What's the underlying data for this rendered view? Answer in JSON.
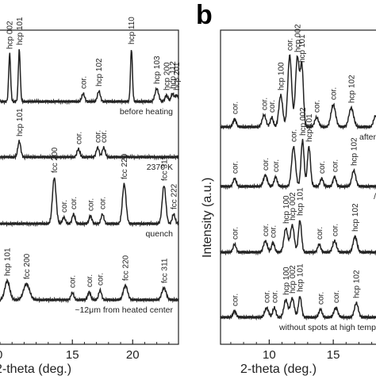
{
  "chart_data": [
    {
      "panel": "a",
      "type": "line",
      "xlabel": "2-theta (deg.)",
      "ylabel": "",
      "xlim": [
        9.0,
        23.8
      ],
      "xticks": [
        15,
        20
      ],
      "xtick_labels": [
        "15",
        "20"
      ],
      "partial_tick_label": "0",
      "traces": [
        {
          "label": "before heating",
          "peaks": [
            {
              "x": 9.8,
              "h": 60,
              "w": 0.08,
              "label": "hcp 002"
            },
            {
              "x": 10.6,
              "h": 65,
              "w": 0.08,
              "label": "hcp 101"
            },
            {
              "x": 15.9,
              "h": 10,
              "w": 0.12,
              "label": "cor."
            },
            {
              "x": 17.2,
              "h": 13,
              "w": 0.12,
              "label": "hcp 102"
            },
            {
              "x": 19.9,
              "h": 66,
              "w": 0.08,
              "label": "hcp 110"
            },
            {
              "x": 22.0,
              "h": 16,
              "w": 0.15,
              "label": "hcp 103"
            },
            {
              "x": 22.8,
              "h": 8,
              "w": 0.12,
              "label": "hcp 200"
            },
            {
              "x": 23.3,
              "h": 10,
              "w": 0.12,
              "label": "hcp 112"
            },
            {
              "x": 23.65,
              "h": 8,
              "w": 0.12,
              "label": "hcp 201"
            }
          ]
        },
        {
          "label": "2370 K",
          "peaks": [
            {
              "x": 10.6,
              "h": 20,
              "w": 0.12,
              "label": "hcp 101"
            },
            {
              "x": 15.5,
              "h": 10,
              "w": 0.12,
              "label": "cor."
            },
            {
              "x": 17.1,
              "h": 12,
              "w": 0.12,
              "label": "cor."
            },
            {
              "x": 17.6,
              "h": 12,
              "w": 0.12,
              "label": "cor."
            }
          ]
        },
        {
          "label": "quench",
          "peaks": [
            {
              "x": 13.5,
              "h": 58,
              "w": 0.15,
              "label": "fcc 200"
            },
            {
              "x": 14.3,
              "h": 8,
              "w": 0.12,
              "label": "cor."
            },
            {
              "x": 15.1,
              "h": 12,
              "w": 0.12,
              "label": "cor."
            },
            {
              "x": 16.5,
              "h": 10,
              "w": 0.12,
              "label": "cor."
            },
            {
              "x": 17.5,
              "h": 12,
              "w": 0.12,
              "label": "cor."
            },
            {
              "x": 19.3,
              "h": 50,
              "w": 0.15,
              "label": "fcc 220"
            },
            {
              "x": 22.6,
              "h": 48,
              "w": 0.15,
              "label": "fcc 311"
            },
            {
              "x": 23.4,
              "h": 12,
              "w": 0.12,
              "label": "fcc 222"
            }
          ]
        },
        {
          "label": "~12μm from heated center",
          "peaks": [
            {
              "x": 9.6,
              "h": 24,
              "w": 0.2,
              "label": "hcp 101"
            },
            {
              "x": 11.2,
              "h": 20,
              "w": 0.25,
              "label": "fcc 200"
            },
            {
              "x": 15.0,
              "h": 9,
              "w": 0.12,
              "label": "cor."
            },
            {
              "x": 16.4,
              "h": 10,
              "w": 0.12,
              "label": "cor."
            },
            {
              "x": 17.3,
              "h": 12,
              "w": 0.12,
              "label": "cor."
            },
            {
              "x": 19.4,
              "h": 18,
              "w": 0.18,
              "label": "fcc 220"
            },
            {
              "x": 22.6,
              "h": 15,
              "w": 0.18,
              "label": "fcc 311"
            }
          ]
        }
      ]
    },
    {
      "panel": "b",
      "type": "line",
      "xlabel": "2-theta (deg.)",
      "ylabel": "Intensity (a.u.)",
      "xlim": [
        6.2,
        19.2
      ],
      "xticks": [
        10,
        15
      ],
      "xtick_labels": [
        "10",
        "15"
      ],
      "traces": [
        {
          "label": "after",
          "peaks": [
            {
              "x": 7.3,
              "h": 10,
              "w": 0.12,
              "label": "cor."
            },
            {
              "x": 9.6,
              "h": 15,
              "w": 0.15,
              "label": "cor."
            },
            {
              "x": 10.2,
              "h": 12,
              "w": 0.12,
              "label": "cor."
            },
            {
              "x": 10.9,
              "h": 40,
              "w": 0.15,
              "label": "hcp 100"
            },
            {
              "x": 11.6,
              "h": 90,
              "w": 0.15,
              "label": "cor."
            },
            {
              "x": 12.2,
              "h": 88,
              "w": 0.15,
              "label": "hcp 002"
            },
            {
              "x": 12.55,
              "h": 75,
              "w": 0.12,
              "label": "hcp 101"
            },
            {
              "x": 13.7,
              "h": 12,
              "w": 0.15,
              "label": "cor."
            },
            {
              "x": 15.0,
              "h": 28,
              "w": 0.18,
              "label": "cor."
            },
            {
              "x": 16.4,
              "h": 24,
              "w": 0.18,
              "label": "hcp 102"
            },
            {
              "x": 18.3,
              "h": 14,
              "w": 0.15,
              "label": ""
            }
          ]
        },
        {
          "label": "/",
          "peaks": [
            {
              "x": 7.3,
              "h": 10,
              "w": 0.12,
              "label": "cor."
            },
            {
              "x": 9.7,
              "h": 14,
              "w": 0.15,
              "label": "cor."
            },
            {
              "x": 10.5,
              "h": 12,
              "w": 0.12,
              "label": "cor."
            },
            {
              "x": 11.9,
              "h": 50,
              "w": 0.15,
              "label": "cor."
            },
            {
              "x": 12.6,
              "h": 58,
              "w": 0.12,
              "label": "hcp 002"
            },
            {
              "x": 13.1,
              "h": 50,
              "w": 0.12,
              "label": "hcp 101"
            },
            {
              "x": 14.1,
              "h": 10,
              "w": 0.12,
              "label": "cor."
            },
            {
              "x": 15.1,
              "h": 12,
              "w": 0.12,
              "label": "cor."
            },
            {
              "x": 16.6,
              "h": 20,
              "w": 0.15,
              "label": "hcp 102"
            }
          ]
        },
        {
          "label": "",
          "peaks": [
            {
              "x": 7.3,
              "h": 10,
              "w": 0.12,
              "label": "cor."
            },
            {
              "x": 9.7,
              "h": 14,
              "w": 0.15,
              "label": "cor."
            },
            {
              "x": 10.3,
              "h": 12,
              "w": 0.12,
              "label": "cor."
            },
            {
              "x": 11.3,
              "h": 30,
              "w": 0.15,
              "label": "hcp 100"
            },
            {
              "x": 11.8,
              "h": 34,
              "w": 0.15,
              "label": "hcp 002"
            },
            {
              "x": 12.4,
              "h": 40,
              "w": 0.12,
              "label": "hcp 101"
            },
            {
              "x": 13.9,
              "h": 10,
              "w": 0.12,
              "label": "cor."
            },
            {
              "x": 15.1,
              "h": 14,
              "w": 0.15,
              "label": "cor."
            },
            {
              "x": 16.7,
              "h": 20,
              "w": 0.15,
              "label": "hcp 102"
            }
          ]
        },
        {
          "label": "without spots at high temp",
          "peaks": [
            {
              "x": 7.3,
              "h": 8,
              "w": 0.12,
              "label": "cor."
            },
            {
              "x": 9.8,
              "h": 12,
              "w": 0.15,
              "label": "cor."
            },
            {
              "x": 10.4,
              "h": 12,
              "w": 0.12,
              "label": "cor."
            },
            {
              "x": 11.3,
              "h": 22,
              "w": 0.15,
              "label": "hcp 100"
            },
            {
              "x": 11.8,
              "h": 24,
              "w": 0.15,
              "label": "hcp 002"
            },
            {
              "x": 12.4,
              "h": 26,
              "w": 0.12,
              "label": "hcp 101"
            },
            {
              "x": 14.0,
              "h": 10,
              "w": 0.12,
              "label": "cor."
            },
            {
              "x": 15.2,
              "h": 12,
              "w": 0.15,
              "label": "cor."
            },
            {
              "x": 16.8,
              "h": 18,
              "w": 0.15,
              "label": "hcp 102"
            }
          ]
        }
      ]
    }
  ],
  "panel_b_label": "b",
  "panel_b_ylabel": "Intensity (a.u.)",
  "panel_a_xlabel": "2-theta (deg.)",
  "panel_b_xlabel": "2-theta (deg.)"
}
